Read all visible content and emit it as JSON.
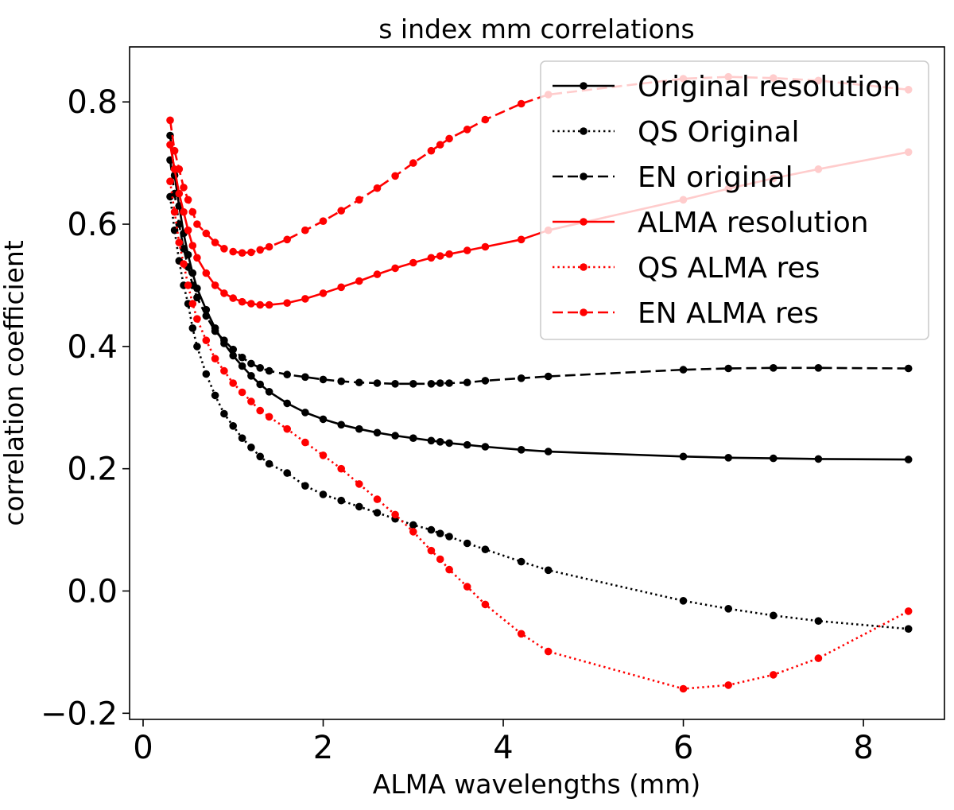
{
  "chart_data": {
    "type": "line",
    "title": "s index mm correlations",
    "xlabel": "ALMA wavelengths (mm)",
    "ylabel": "correlation coefficient",
    "xlim": [
      -0.15,
      8.9
    ],
    "ylim": [
      -0.21,
      0.89
    ],
    "x_ticks": [
      0,
      2,
      4,
      6,
      8
    ],
    "x_tick_labels": [
      "0",
      "2",
      "4",
      "6",
      "8"
    ],
    "y_ticks": [
      -0.2,
      0.0,
      0.2,
      0.4,
      0.6,
      0.8
    ],
    "y_tick_labels": [
      "−0.2",
      "0.0",
      "0.2",
      "0.4",
      "0.6",
      "0.8"
    ],
    "legend_position": "top-right",
    "x": [
      0.3,
      0.35,
      0.4,
      0.45,
      0.5,
      0.55,
      0.6,
      0.7,
      0.8,
      0.9,
      1.0,
      1.1,
      1.2,
      1.3,
      1.4,
      1.6,
      1.8,
      2.0,
      2.2,
      2.4,
      2.6,
      2.8,
      3.0,
      3.2,
      3.3,
      3.4,
      3.6,
      3.8,
      4.2,
      4.5,
      6.0,
      6.5,
      7.0,
      7.5,
      8.5
    ],
    "series": [
      {
        "name": "Original resolution",
        "color": "#000000",
        "linestyle": "solid",
        "values": [
          0.745,
          0.68,
          0.63,
          0.585,
          0.55,
          0.52,
          0.495,
          0.46,
          0.43,
          0.405,
          0.385,
          0.368,
          0.352,
          0.338,
          0.326,
          0.307,
          0.292,
          0.281,
          0.272,
          0.265,
          0.259,
          0.254,
          0.25,
          0.246,
          0.244,
          0.242,
          0.239,
          0.236,
          0.231,
          0.228,
          0.22,
          0.218,
          0.217,
          0.216,
          0.215
        ]
      },
      {
        "name": "QS Original",
        "color": "#000000",
        "linestyle": "dotted",
        "values": [
          0.645,
          0.59,
          0.54,
          0.5,
          0.47,
          0.43,
          0.4,
          0.355,
          0.32,
          0.29,
          0.27,
          0.25,
          0.235,
          0.22,
          0.208,
          0.193,
          0.172,
          0.158,
          0.148,
          0.138,
          0.128,
          0.118,
          0.108,
          0.1,
          0.094,
          0.089,
          0.078,
          0.068,
          0.048,
          0.034,
          -0.016,
          -0.029,
          -0.04,
          -0.049,
          -0.062
        ]
      },
      {
        "name": "EN original",
        "color": "#000000",
        "linestyle": "dashed",
        "values": [
          0.705,
          0.65,
          0.6,
          0.56,
          0.53,
          0.5,
          0.48,
          0.45,
          0.425,
          0.41,
          0.395,
          0.382,
          0.372,
          0.365,
          0.36,
          0.354,
          0.35,
          0.346,
          0.343,
          0.341,
          0.34,
          0.339,
          0.339,
          0.339,
          0.34,
          0.34,
          0.341,
          0.344,
          0.348,
          0.351,
          0.362,
          0.364,
          0.365,
          0.365,
          0.364
        ]
      },
      {
        "name": "ALMA resolution",
        "color": "#ff0000",
        "linestyle": "solid",
        "values": [
          0.73,
          0.69,
          0.65,
          0.62,
          0.59,
          0.565,
          0.545,
          0.52,
          0.5,
          0.487,
          0.479,
          0.473,
          0.47,
          0.468,
          0.468,
          0.471,
          0.478,
          0.487,
          0.497,
          0.507,
          0.518,
          0.528,
          0.537,
          0.545,
          0.548,
          0.551,
          0.557,
          0.563,
          0.575,
          0.59,
          0.64,
          0.658,
          0.675,
          0.69,
          0.718
        ]
      },
      {
        "name": "QS ALMA res",
        "color": "#ff0000",
        "linestyle": "dotted",
        "values": [
          0.67,
          0.62,
          0.57,
          0.535,
          0.5,
          0.47,
          0.445,
          0.41,
          0.38,
          0.36,
          0.34,
          0.325,
          0.31,
          0.295,
          0.285,
          0.265,
          0.243,
          0.222,
          0.2,
          0.175,
          0.15,
          0.125,
          0.097,
          0.066,
          0.052,
          0.035,
          0.007,
          -0.022,
          -0.07,
          -0.099,
          -0.16,
          -0.154,
          -0.137,
          -0.11,
          -0.033
        ]
      },
      {
        "name": "EN ALMA res",
        "color": "#ff0000",
        "linestyle": "dashed",
        "values": [
          0.77,
          0.72,
          0.69,
          0.66,
          0.64,
          0.62,
          0.6,
          0.585,
          0.57,
          0.56,
          0.555,
          0.553,
          0.554,
          0.558,
          0.563,
          0.575,
          0.59,
          0.605,
          0.622,
          0.64,
          0.659,
          0.679,
          0.7,
          0.72,
          0.73,
          0.74,
          0.755,
          0.771,
          0.797,
          0.812,
          0.838,
          0.841,
          0.839,
          0.835,
          0.82
        ]
      }
    ]
  }
}
